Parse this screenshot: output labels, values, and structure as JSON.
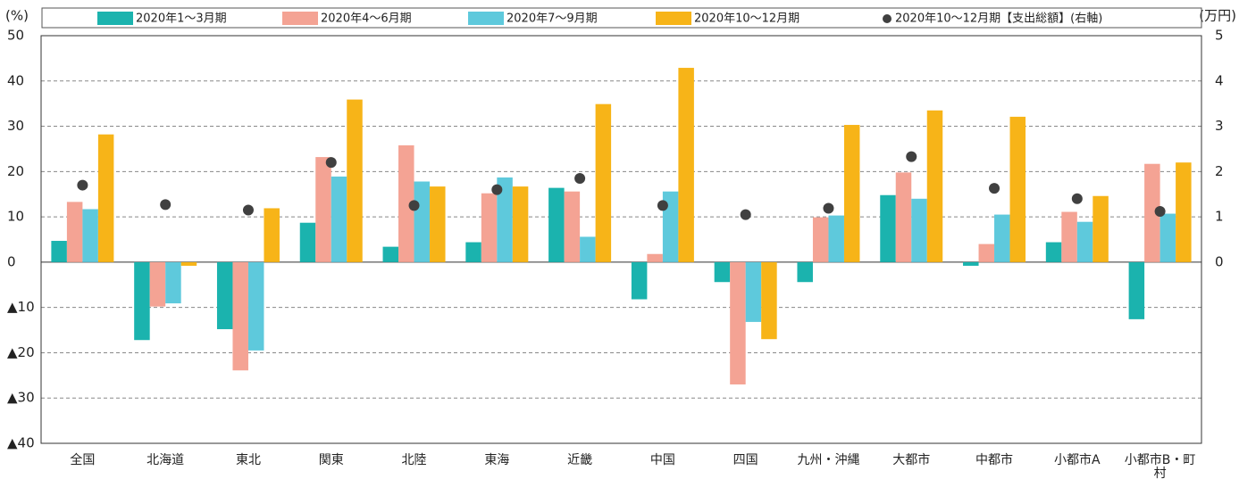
{
  "chart_data": {
    "type": "bar",
    "y_label": "(%)",
    "y2_label": "(万円)",
    "categories": [
      "全国",
      "北海道",
      "東北",
      "関東",
      "北陸",
      "東海",
      "近畿",
      "中国",
      "四国",
      "九州・沖縄",
      "大都市",
      "中都市",
      "小都市A",
      "小都市B・町村"
    ],
    "series": [
      {
        "name": "2020年1～3月期",
        "color": "#1bb3ae",
        "values": [
          4.7,
          -17.2,
          -14.8,
          8.7,
          3.4,
          4.4,
          16.4,
          -8.2,
          -4.4,
          -4.4,
          14.8,
          -0.8,
          4.4,
          -12.6
        ]
      },
      {
        "name": "2020年4～6月期",
        "color": "#f4a394",
        "values": [
          13.3,
          -9.8,
          -23.9,
          23.2,
          25.8,
          15.2,
          15.6,
          1.8,
          -27.0,
          9.9,
          19.8,
          4.0,
          11.1,
          21.7
        ]
      },
      {
        "name": "2020年7～9月期",
        "color": "#5ec9dc",
        "values": [
          11.7,
          -9.1,
          -19.5,
          18.9,
          17.8,
          18.7,
          5.6,
          15.6,
          -13.2,
          10.3,
          14.0,
          10.5,
          8.9,
          10.7
        ]
      },
      {
        "name": "2020年10～12月期",
        "color": "#f7b418",
        "values": [
          28.2,
          -0.8,
          11.9,
          35.9,
          16.7,
          16.7,
          34.9,
          42.9,
          -17.0,
          30.3,
          33.5,
          32.1,
          14.6,
          22.0
        ]
      },
      {
        "name": "2020年10～12月期【支出総額】(右軸)",
        "color": "#404040",
        "axis": "y2",
        "values": [
          1.7,
          1.27,
          1.15,
          2.2,
          1.25,
          1.6,
          1.85,
          1.25,
          1.05,
          1.19,
          2.33,
          1.63,
          1.4,
          1.12
        ]
      }
    ],
    "ylim": [
      -40,
      50
    ],
    "yticks": [
      {
        "value": -40,
        "label": "▲40"
      },
      {
        "value": -30,
        "label": "▲30"
      },
      {
        "value": -20,
        "label": "▲20"
      },
      {
        "value": -10,
        "label": "▲10"
      },
      0,
      10,
      20,
      30,
      40,
      50
    ],
    "y2lim": [
      -4,
      5
    ],
    "y2ticks": [
      0,
      1,
      2,
      3,
      4,
      5
    ],
    "grid": true
  }
}
